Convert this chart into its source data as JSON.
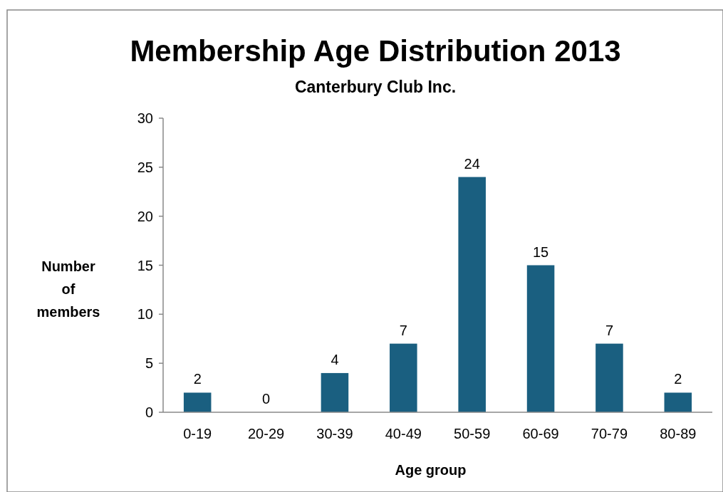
{
  "chart_data": {
    "type": "bar",
    "title": "Membership Age Distribution 2013",
    "subtitle": "Canterbury Club Inc.",
    "xlabel": "Age group",
    "ylabel": "Number of members",
    "categories": [
      "0-19",
      "20-29",
      "30-39",
      "40-49",
      "50-59",
      "60-69",
      "70-79",
      "80-89"
    ],
    "values": [
      2,
      0,
      4,
      7,
      24,
      15,
      7,
      2
    ],
    "color": "#1a5f80",
    "ylim": [
      0,
      30
    ],
    "yticks": [
      0,
      5,
      10,
      15,
      20,
      25,
      30
    ],
    "grid": false,
    "data_labels": true
  }
}
